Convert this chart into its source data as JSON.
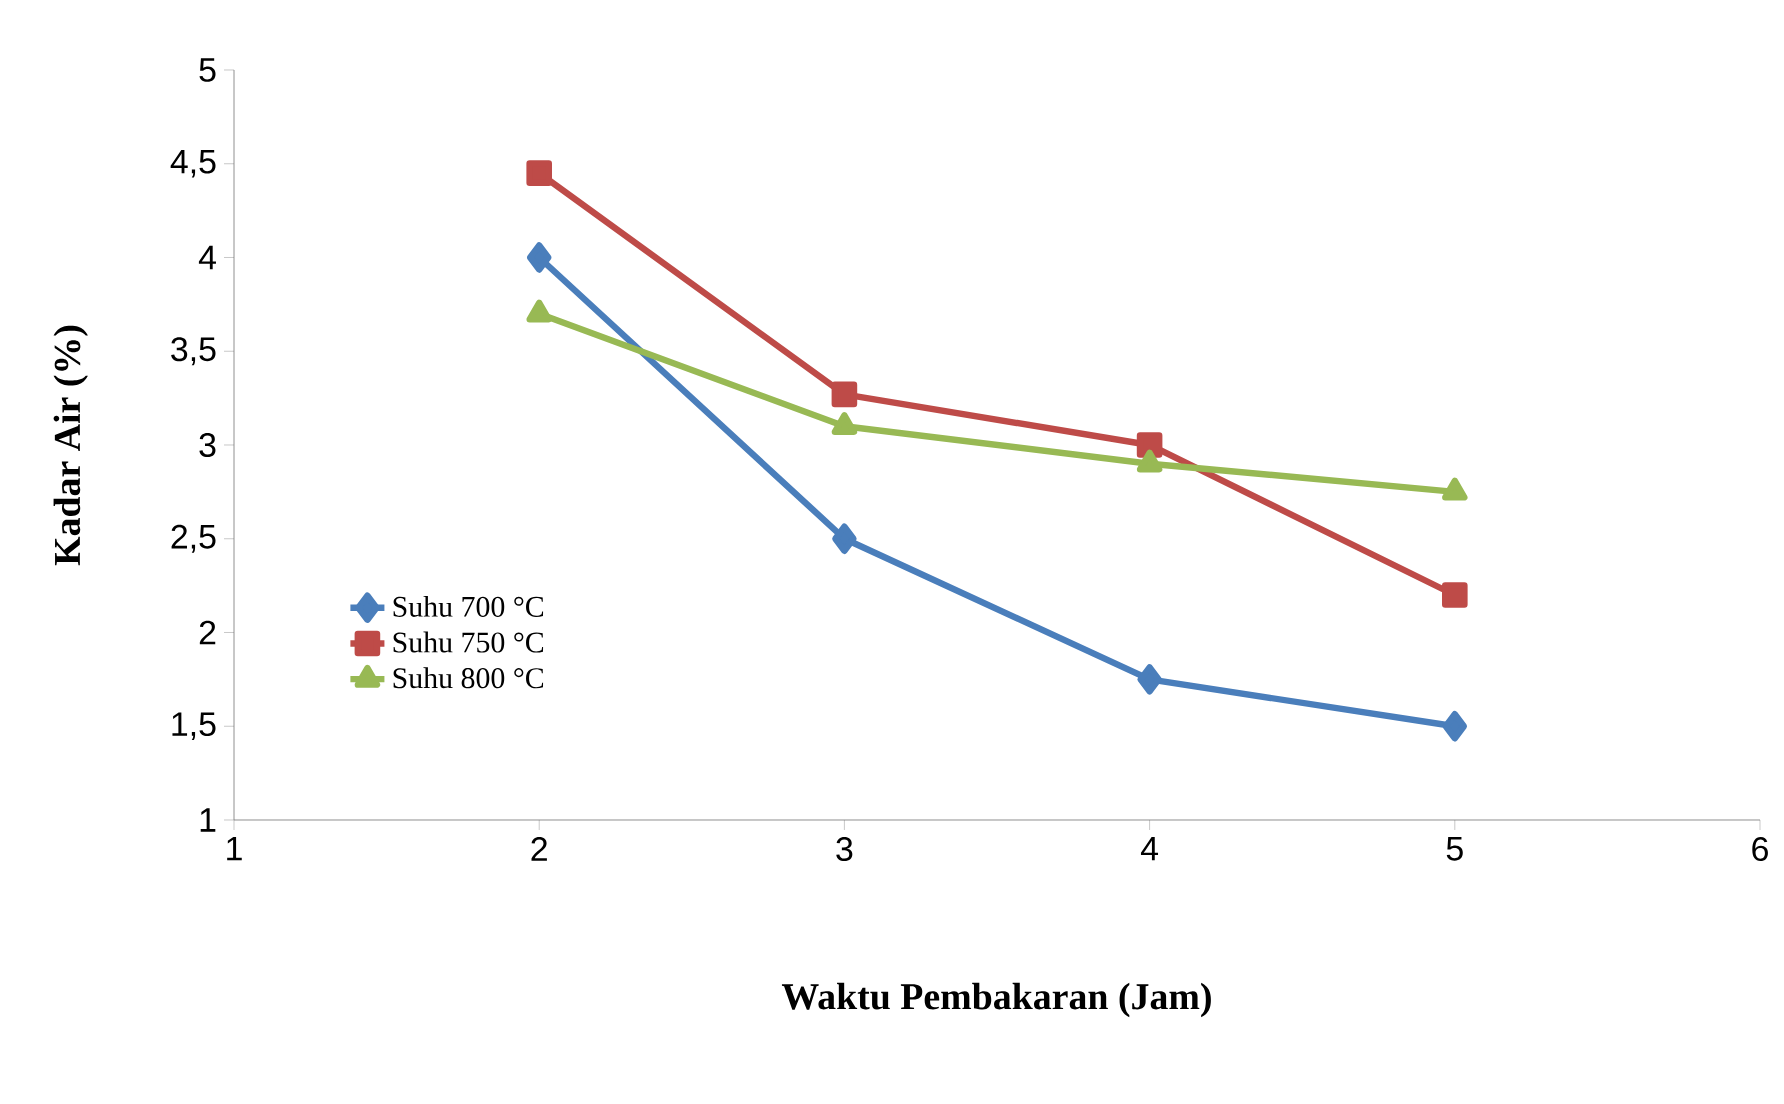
{
  "chart_data": {
    "type": "line",
    "xlabel": "Waktu Pembakaran (Jam)",
    "ylabel": "Kadar Air (%)",
    "x": [
      2,
      3,
      4,
      5
    ],
    "series": [
      {
        "name": "Suhu 700 °C",
        "color": "#4a7ebb",
        "marker": "diamond",
        "values": [
          4.0,
          2.5,
          1.75,
          1.5
        ]
      },
      {
        "name": "Suhu 750 °C",
        "color": "#be4b48",
        "marker": "square",
        "values": [
          4.45,
          3.27,
          3.0,
          2.2
        ]
      },
      {
        "name": "Suhu 800 °C",
        "color": "#98b954",
        "marker": "triangle",
        "values": [
          3.7,
          3.1,
          2.9,
          2.75
        ]
      }
    ],
    "xlim": [
      1,
      6
    ],
    "xticks": [
      1,
      2,
      3,
      4,
      5,
      6
    ],
    "ylim": [
      1,
      5
    ],
    "yticks": [
      1,
      {
        "value": 1.5,
        "label": "1,5"
      },
      2,
      {
        "value": 2.5,
        "label": "2,5"
      },
      3,
      {
        "value": 3.5,
        "label": "3,5"
      },
      4,
      {
        "value": 4.5,
        "label": "4,5"
      },
      5
    ],
    "grid": false,
    "legend": "bottom left",
    "line_style": "solid"
  }
}
